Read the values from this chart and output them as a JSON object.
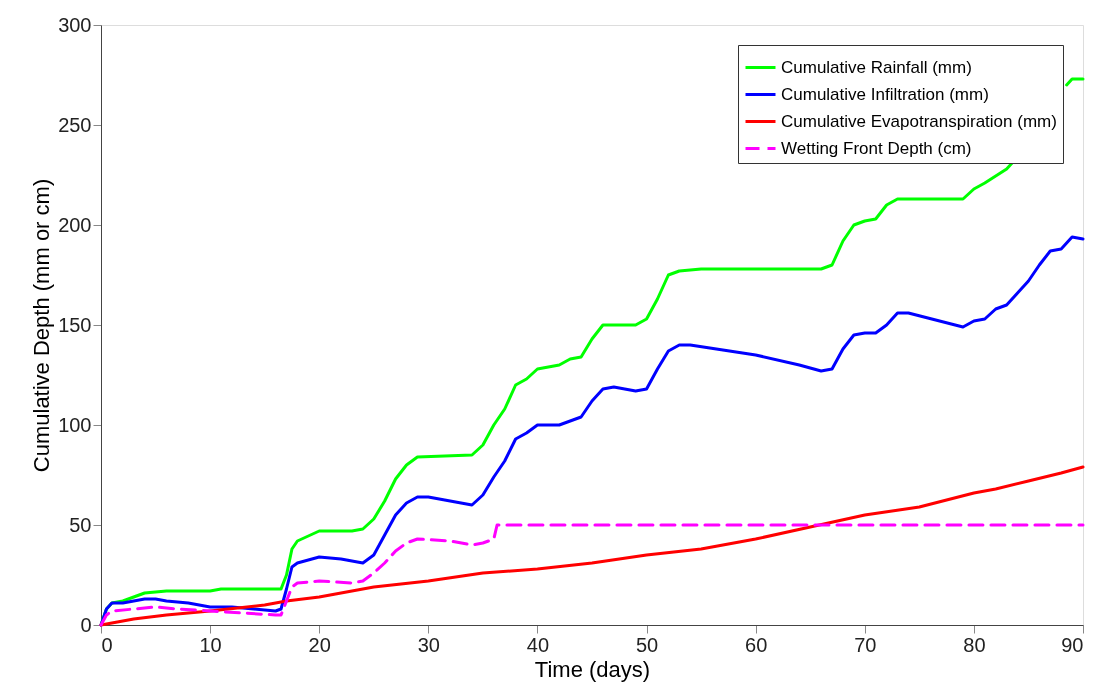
{
  "chart_data": {
    "type": "line",
    "xlabel": "Time (days)",
    "ylabel": "Cumulative Depth (mm or cm)",
    "xlim": [
      0,
      90
    ],
    "ylim": [
      0,
      300
    ],
    "xticks": [
      0,
      10,
      20,
      30,
      40,
      50,
      60,
      70,
      80,
      90
    ],
    "yticks": [
      0,
      50,
      100,
      150,
      200,
      250,
      300
    ],
    "grid": false,
    "legend": "top right",
    "marker": "none",
    "series": [
      {
        "name": "Cumulative Rainfall (mm)",
        "color": "#00ff00",
        "line_style": "solid",
        "x": [
          0,
          0.5,
          1,
          2,
          3,
          4,
          6,
          10,
          11,
          16.5,
          17,
          17.5,
          18,
          20,
          23,
          24,
          25,
          26,
          27,
          28,
          29,
          34,
          35,
          36,
          37,
          38,
          39,
          40,
          42,
          43,
          44,
          45,
          46,
          49,
          50,
          51,
          52,
          53,
          55,
          66,
          67,
          68,
          69,
          70,
          71,
          72,
          73,
          79,
          80,
          81,
          83,
          83.5,
          84,
          87,
          88.5,
          89,
          90
        ],
        "values": [
          0,
          8,
          11,
          12,
          14,
          16,
          17,
          17,
          18,
          18,
          25,
          38,
          42,
          47,
          47,
          48,
          53,
          62,
          73,
          80,
          84,
          85,
          90,
          100,
          108,
          120,
          123,
          128,
          130,
          133,
          134,
          143,
          150,
          150,
          153,
          163,
          175,
          177,
          178,
          178,
          180,
          192,
          200,
          202,
          203,
          210,
          213,
          213,
          218,
          221,
          228,
          231,
          null,
          null,
          270,
          273,
          273
        ]
      },
      {
        "name": "Cumulative Infiltration (mm)",
        "color": "#0000ff",
        "line_style": "solid",
        "x": [
          0,
          0.5,
          1,
          2,
          3,
          4,
          5,
          6,
          8,
          10,
          12,
          14,
          16,
          16.5,
          17,
          17.5,
          18,
          20,
          22,
          24,
          25,
          26,
          27,
          28,
          29,
          30,
          34,
          35,
          36,
          37,
          38,
          39,
          40,
          42,
          44,
          45,
          46,
          47,
          49,
          50,
          51,
          52,
          53,
          54,
          60,
          64,
          66,
          67,
          68,
          69,
          70,
          71,
          72,
          73,
          74,
          79,
          80,
          81,
          82,
          83,
          84,
          85,
          86,
          87,
          88,
          89,
          90
        ],
        "values": [
          0,
          8,
          11,
          11,
          12,
          13,
          13,
          12,
          11,
          9,
          9,
          8,
          7,
          8,
          18,
          29,
          31,
          34,
          33,
          31,
          35,
          45,
          55,
          61,
          64,
          64,
          60,
          65,
          74,
          82,
          93,
          96,
          100,
          100,
          104,
          112,
          118,
          119,
          117,
          118,
          128,
          137,
          140,
          140,
          135,
          130,
          127,
          128,
          138,
          145,
          146,
          146,
          150,
          156,
          156,
          149,
          152,
          153,
          158,
          160,
          166,
          172,
          180,
          187,
          188,
          194,
          193
        ]
      },
      {
        "name": "Cumulative Evapotranspiration (mm)",
        "color": "#ff0000",
        "line_style": "solid",
        "x": [
          0,
          3,
          6,
          10,
          15,
          17,
          20,
          25,
          30,
          35,
          40,
          45,
          50,
          55,
          60,
          65,
          70,
          75,
          80,
          82,
          85,
          88,
          90
        ],
        "values": [
          0,
          3,
          5,
          7,
          10,
          12,
          14,
          19,
          22,
          26,
          28,
          31,
          35,
          38,
          43,
          49,
          55,
          59,
          66,
          68,
          72,
          76,
          79
        ]
      },
      {
        "name": "Wetting Front Depth (cm)",
        "color": "#ff00ff",
        "line_style": "dashed",
        "x": [
          0,
          0.5,
          1,
          3,
          5,
          7,
          10,
          13,
          16,
          16.5,
          17,
          17.5,
          18,
          20,
          23,
          24,
          25,
          26,
          27,
          28,
          29,
          32,
          34,
          35,
          36,
          36.3,
          90
        ],
        "values": [
          0,
          5,
          7,
          8,
          9,
          8,
          7,
          6,
          5,
          5,
          12,
          19,
          21,
          22,
          21,
          22,
          26,
          31,
          37,
          41,
          43,
          42,
          40,
          41,
          43,
          50,
          50
        ]
      }
    ]
  }
}
